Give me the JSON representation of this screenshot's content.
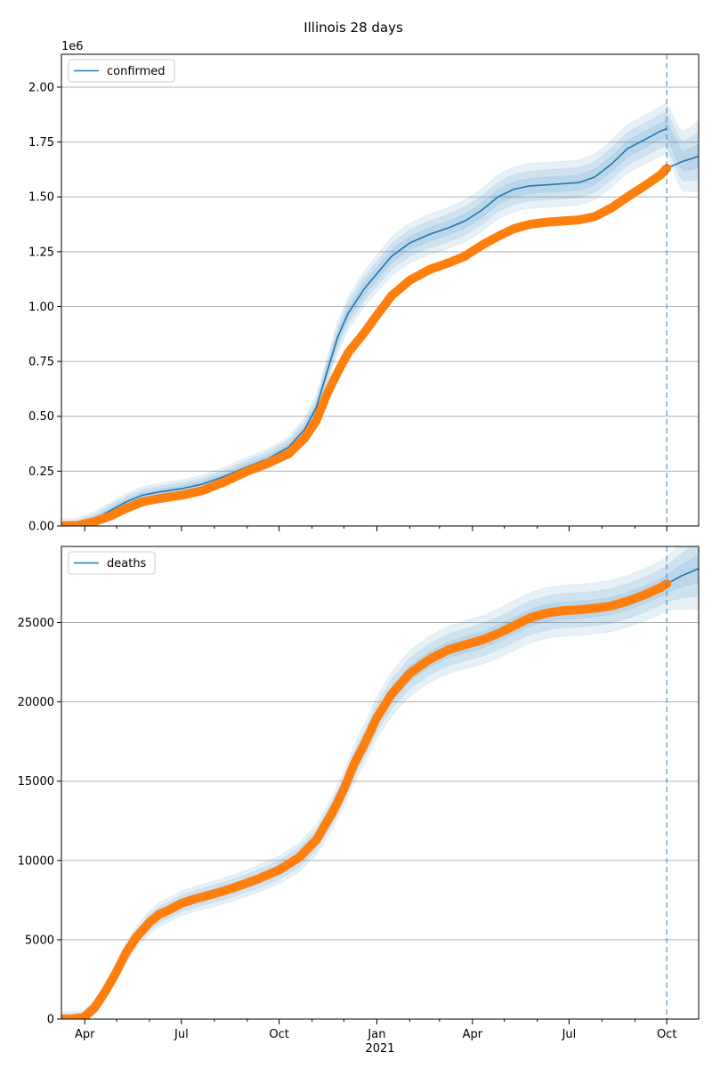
{
  "figure_title": "Illinois 28 days",
  "chart_data": [
    {
      "type": "line",
      "legend": "confirmed",
      "legend_position": "top-left",
      "offset_label": "1e6",
      "grid": "horizontal",
      "xlim": [
        "2020-03-10",
        "2021-10-31"
      ],
      "ylim": [
        0,
        2.15
      ],
      "y_ticks": [
        0.0,
        0.25,
        0.5,
        0.75,
        1.0,
        1.25,
        1.5,
        1.75,
        2.0
      ],
      "y_tick_labels": [
        "0.00",
        "0.25",
        "0.50",
        "0.75",
        "1.00",
        "1.25",
        "1.50",
        "1.75",
        "2.00"
      ],
      "forecast_start": "2021-10-01",
      "observed": {
        "x": [
          "2020-03-10",
          "2020-03-25",
          "2020-04-10",
          "2020-04-25",
          "2020-05-10",
          "2020-05-25",
          "2020-06-10",
          "2020-07-01",
          "2020-07-20",
          "2020-08-10",
          "2020-09-01",
          "2020-09-20",
          "2020-10-10",
          "2020-10-25",
          "2020-11-05",
          "2020-11-15",
          "2020-11-25",
          "2020-12-05",
          "2020-12-20",
          "2021-01-01",
          "2021-01-15",
          "2021-02-01",
          "2021-02-20",
          "2021-03-10",
          "2021-03-25",
          "2021-04-10",
          "2021-04-25",
          "2021-05-10",
          "2021-05-25",
          "2021-06-10",
          "2021-06-25",
          "2021-07-10",
          "2021-07-25",
          "2021-08-10",
          "2021-08-25",
          "2021-09-10",
          "2021-09-25",
          "2021-10-01"
        ],
        "y": [
          0.0,
          0.002,
          0.02,
          0.045,
          0.08,
          0.11,
          0.125,
          0.14,
          0.16,
          0.2,
          0.25,
          0.285,
          0.33,
          0.4,
          0.48,
          0.6,
          0.7,
          0.79,
          0.88,
          0.96,
          1.05,
          1.12,
          1.17,
          1.2,
          1.23,
          1.28,
          1.32,
          1.355,
          1.375,
          1.385,
          1.39,
          1.395,
          1.41,
          1.45,
          1.5,
          1.55,
          1.6,
          1.63
        ]
      },
      "fit": {
        "x": [
          "2020-03-10",
          "2020-03-25",
          "2020-04-10",
          "2020-04-25",
          "2020-05-10",
          "2020-05-25",
          "2020-06-10",
          "2020-07-01",
          "2020-07-20",
          "2020-08-10",
          "2020-09-01",
          "2020-09-20",
          "2020-10-10",
          "2020-10-25",
          "2020-11-05",
          "2020-11-15",
          "2020-11-25",
          "2020-12-05",
          "2020-12-20",
          "2021-01-01",
          "2021-01-15",
          "2021-02-01",
          "2021-02-20",
          "2021-03-10",
          "2021-03-25",
          "2021-04-10",
          "2021-04-25",
          "2021-05-10",
          "2021-05-25",
          "2021-06-10",
          "2021-06-25",
          "2021-07-10",
          "2021-07-25",
          "2021-08-10",
          "2021-08-25",
          "2021-09-10",
          "2021-09-25",
          "2021-10-01"
        ],
        "y": [
          0.0,
          0.003,
          0.03,
          0.07,
          0.11,
          0.14,
          0.155,
          0.17,
          0.19,
          0.225,
          0.27,
          0.305,
          0.36,
          0.44,
          0.54,
          0.7,
          0.86,
          0.97,
          1.08,
          1.15,
          1.23,
          1.29,
          1.33,
          1.36,
          1.39,
          1.44,
          1.5,
          1.535,
          1.55,
          1.555,
          1.56,
          1.565,
          1.59,
          1.65,
          1.72,
          1.76,
          1.8,
          1.81
        ]
      },
      "forecast": {
        "x": [
          "2021-10-01",
          "2021-10-15",
          "2021-10-31"
        ],
        "y": [
          1.63,
          1.66,
          1.685
        ]
      }
    },
    {
      "type": "line",
      "legend": "deaths",
      "legend_position": "top-left",
      "offset_label": "",
      "grid": "horizontal",
      "xlim": [
        "2020-03-10",
        "2021-10-31"
      ],
      "ylim": [
        0,
        29800
      ],
      "y_ticks": [
        0,
        5000,
        10000,
        15000,
        20000,
        25000
      ],
      "y_tick_labels": [
        "0",
        "5000",
        "10000",
        "15000",
        "20000",
        "25000"
      ],
      "forecast_start": "2021-10-01",
      "observed": {
        "x": [
          "2020-03-10",
          "2020-03-20",
          "2020-03-31",
          "2020-04-10",
          "2020-04-20",
          "2020-05-01",
          "2020-05-10",
          "2020-05-20",
          "2020-06-01",
          "2020-06-10",
          "2020-06-20",
          "2020-07-01",
          "2020-07-15",
          "2020-08-01",
          "2020-08-20",
          "2020-09-10",
          "2020-10-01",
          "2020-10-20",
          "2020-11-05",
          "2020-11-20",
          "2020-12-01",
          "2020-12-10",
          "2020-12-20",
          "2021-01-01",
          "2021-01-15",
          "2021-02-01",
          "2021-02-20",
          "2021-03-10",
          "2021-03-25",
          "2021-04-10",
          "2021-04-25",
          "2021-05-10",
          "2021-05-25",
          "2021-06-10",
          "2021-06-25",
          "2021-07-10",
          "2021-07-25",
          "2021-08-10",
          "2021-08-25",
          "2021-09-10",
          "2021-09-25",
          "2021-10-01"
        ],
        "y": [
          0,
          10,
          100,
          700,
          1700,
          3000,
          4200,
          5200,
          6100,
          6600,
          6900,
          7300,
          7600,
          7900,
          8300,
          8800,
          9400,
          10200,
          11300,
          13000,
          14500,
          16000,
          17300,
          19000,
          20500,
          21800,
          22700,
          23300,
          23600,
          23900,
          24300,
          24800,
          25300,
          25600,
          25750,
          25800,
          25900,
          26050,
          26350,
          26750,
          27200,
          27450
        ]
      },
      "fit": {
        "x": [
          "2020-03-10",
          "2020-03-20",
          "2020-03-31",
          "2020-04-10",
          "2020-04-20",
          "2020-05-01",
          "2020-05-10",
          "2020-05-20",
          "2020-06-01",
          "2020-06-10",
          "2020-06-20",
          "2020-07-01",
          "2020-07-15",
          "2020-08-01",
          "2020-08-20",
          "2020-09-10",
          "2020-10-01",
          "2020-10-20",
          "2020-11-05",
          "2020-11-20",
          "2020-12-01",
          "2020-12-10",
          "2020-12-20",
          "2021-01-01",
          "2021-01-15",
          "2021-02-01",
          "2021-02-20",
          "2021-03-10",
          "2021-03-25",
          "2021-04-10",
          "2021-04-25",
          "2021-05-10",
          "2021-05-25",
          "2021-06-10",
          "2021-06-25",
          "2021-07-10",
          "2021-07-25",
          "2021-08-10",
          "2021-08-25",
          "2021-09-10",
          "2021-09-25",
          "2021-10-01"
        ],
        "y": [
          0,
          10,
          100,
          700,
          1700,
          3000,
          4200,
          5200,
          6100,
          6600,
          6900,
          7300,
          7600,
          7900,
          8300,
          8800,
          9400,
          10200,
          11300,
          13000,
          14500,
          16000,
          17300,
          19000,
          20500,
          21800,
          22700,
          23300,
          23600,
          23900,
          24300,
          24800,
          25300,
          25600,
          25750,
          25800,
          25900,
          26050,
          26350,
          26750,
          27200,
          27450
        ]
      },
      "forecast": {
        "x": [
          "2021-10-01",
          "2021-10-15",
          "2021-10-31"
        ],
        "y": [
          27450,
          27950,
          28400
        ]
      }
    }
  ],
  "x_axis": {
    "ticks": [
      "2020-04-01",
      "2020-07-01",
      "2020-10-01",
      "2021-01-01",
      "2021-04-01",
      "2021-07-01",
      "2021-10-01"
    ],
    "tick_labels": [
      "Apr",
      "Jul",
      "Oct",
      "Jan",
      "Apr",
      "Jul",
      "Oct"
    ],
    "year_label": "2021"
  },
  "colors": {
    "fit_line": "#1f77b4",
    "band": "#1f77b4",
    "observed": "#ff7f0e",
    "grid": "#b0b0b0",
    "forecast_marker": "#1f77b4"
  }
}
